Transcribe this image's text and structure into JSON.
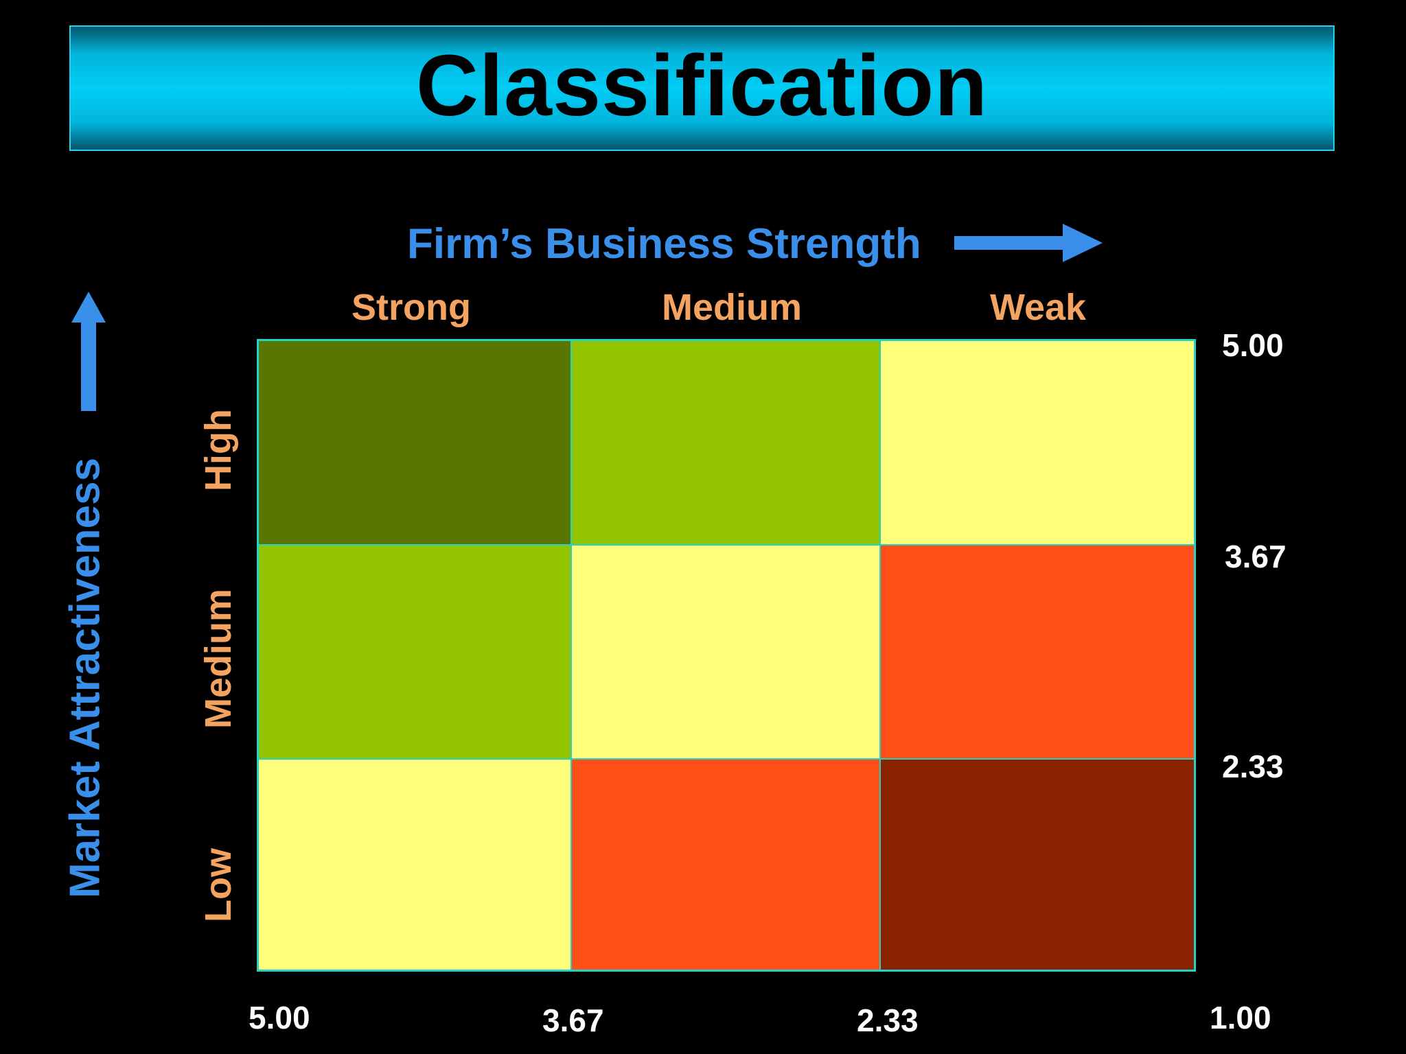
{
  "title": "Classification",
  "x_axis": {
    "title": "Firm’s Business Strength",
    "columns": [
      "Strong",
      "Medium",
      "Weak"
    ],
    "ticks": [
      "5.00",
      "3.67",
      "2.33",
      "1.00"
    ]
  },
  "y_axis": {
    "title": "Market Attractiveness",
    "rows": [
      "High",
      "Medium",
      "Low"
    ],
    "ticks": [
      "5.00",
      "3.67",
      "2.33"
    ]
  },
  "matrix": {
    "colors": [
      [
        "#5a7600",
        "#92c400",
        "#ffff7c"
      ],
      [
        "#92c400",
        "#ffff7c",
        "#ff4f17"
      ],
      [
        "#ffff7c",
        "#ff4f17",
        "#8a2400"
      ]
    ],
    "grid_line_color": "#22d3c8"
  },
  "colors": {
    "background": "#000000",
    "axis_title": "#3a8fea",
    "level_label": "#f4a460",
    "tick_label": "#ffffff"
  },
  "icons": {
    "x_arrow": "right-arrow-icon",
    "y_arrow": "up-arrow-icon"
  }
}
